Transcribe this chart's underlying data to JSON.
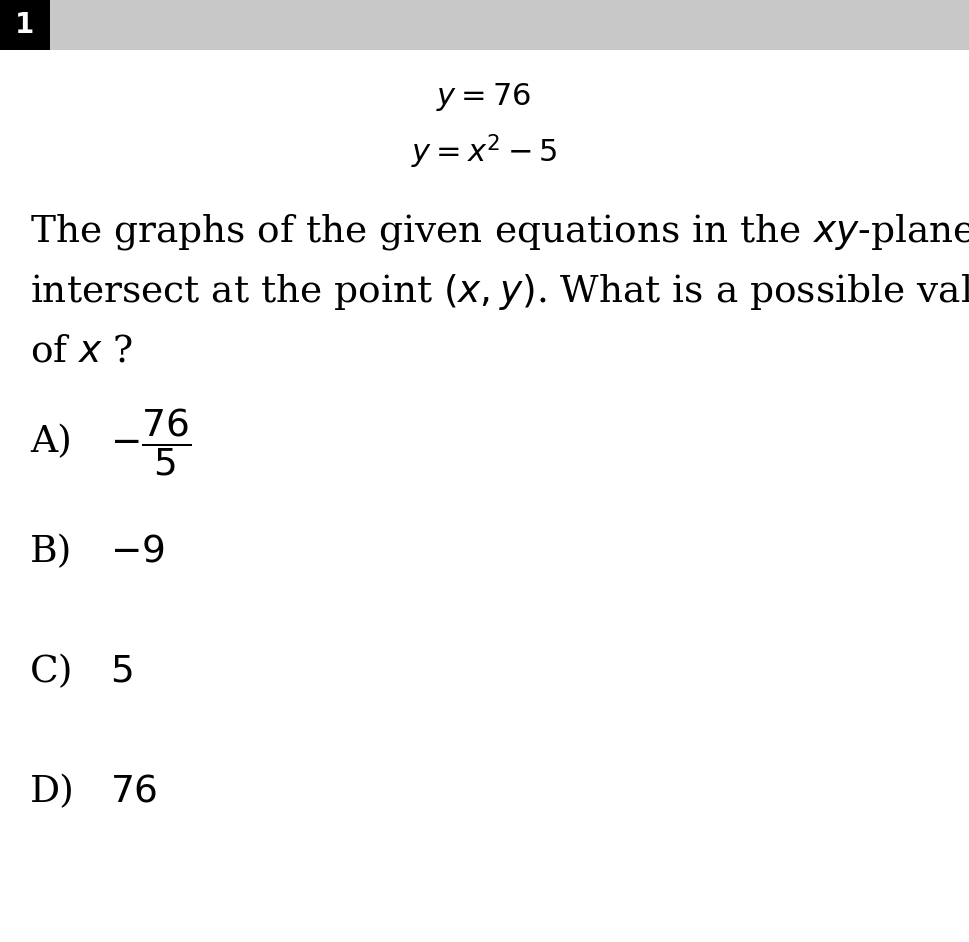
{
  "header_number": "1",
  "header_bg_color": "#c8c8c8",
  "header_num_bg_color": "#000000",
  "header_num_color": "#ffffff",
  "eq1": "$y = 76$",
  "eq2": "$y = x^2 - 5$",
  "question_line1": "The graphs of the given equations in the $xy$-plane",
  "question_line2": "intersect at the point $(x, y)$. What is a possible value",
  "question_line3": "of $x$ ?",
  "choice_A_label": "A)",
  "choice_A_value": "$-\\dfrac{76}{5}$",
  "choice_B_label": "B)",
  "choice_B_value": "$-9$",
  "choice_C_label": "C)",
  "choice_C_value": "$5$",
  "choice_D_label": "D)",
  "choice_D_value": "$76$",
  "bg_color": "#ffffff",
  "text_color": "#000000",
  "eq_fontsize": 22,
  "question_fontsize": 27,
  "choice_fontsize": 27,
  "header_fontsize": 20
}
